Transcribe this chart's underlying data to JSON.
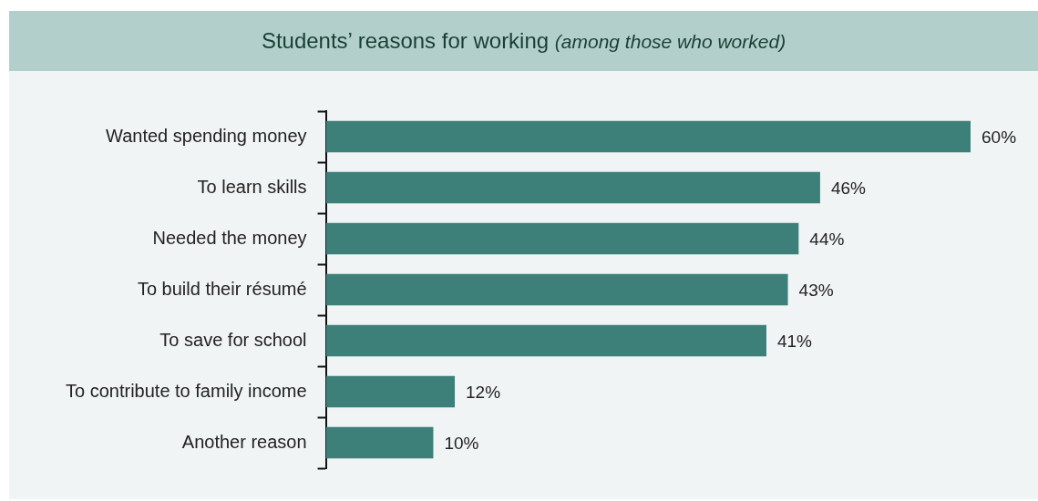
{
  "chart_data": {
    "type": "bar",
    "orientation": "horizontal",
    "title": "Students’ reasons for working",
    "subtitle": "(among those who worked)",
    "categories": [
      "Wanted spending money",
      "To learn skills",
      "Needed the money",
      "To build their résumé",
      "To save for school",
      "To contribute to family income",
      "Another reason"
    ],
    "values": [
      60,
      46,
      44,
      43,
      41,
      12,
      10
    ],
    "value_labels": [
      "60%",
      "46%",
      "44%",
      "43%",
      "41%",
      "12%",
      "10%"
    ],
    "color": "#3d8079",
    "tick_labels": "y"
  }
}
